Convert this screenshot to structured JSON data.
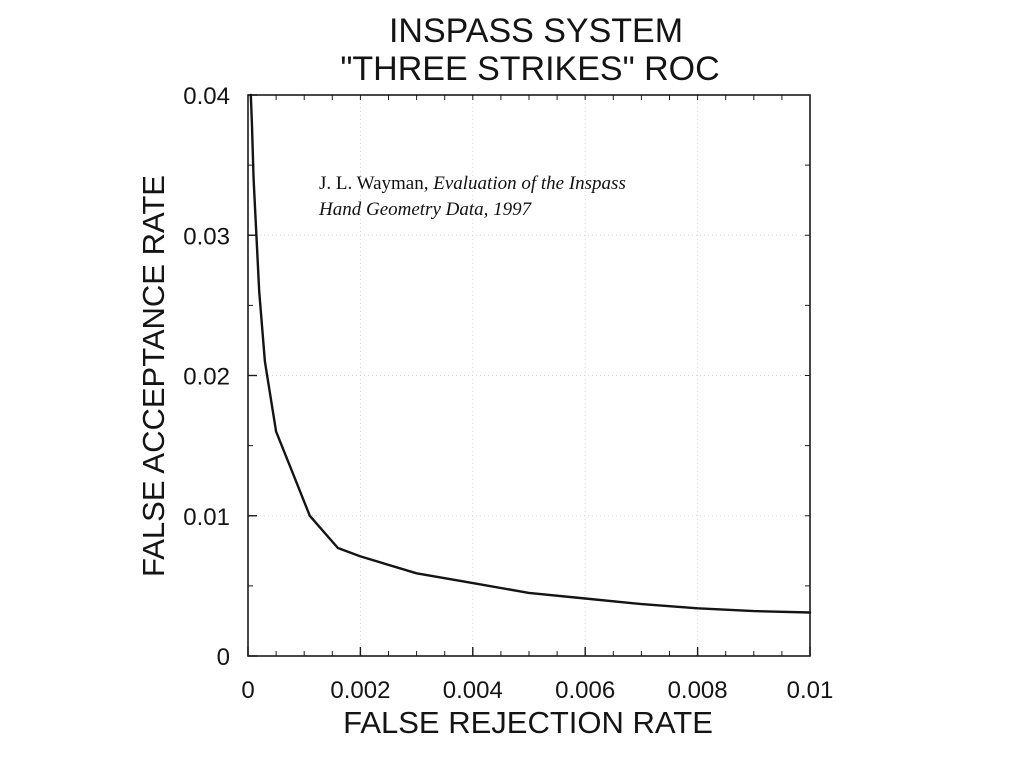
{
  "chart_data": {
    "type": "line",
    "title_lines": [
      "INSPASS SYSTEM",
      "\"THREE STRIKES\" ROC"
    ],
    "xlabel": "FALSE REJECTION RATE",
    "ylabel": "FALSE ACCEPTANCE RATE",
    "xlim": [
      0,
      0.01
    ],
    "ylim": [
      0,
      0.04
    ],
    "x_ticks": [
      {
        "value": 0,
        "label": "0"
      },
      {
        "value": 0.002,
        "label": "0.002"
      },
      {
        "value": 0.004,
        "label": "0.004"
      },
      {
        "value": 0.006,
        "label": "0.006"
      },
      {
        "value": 0.008,
        "label": "0.008"
      },
      {
        "value": 0.01,
        "label": "0.01"
      }
    ],
    "y_ticks": [
      {
        "value": 0,
        "label": "0"
      },
      {
        "value": 0.01,
        "label": "0.01"
      },
      {
        "value": 0.02,
        "label": "0.02"
      },
      {
        "value": 0.03,
        "label": "0.03"
      },
      {
        "value": 0.04,
        "label": "0.04"
      }
    ],
    "grid": true,
    "series": [
      {
        "x": [
          5e-05,
          7e-05,
          0.0001,
          0.00015,
          0.0002,
          0.0003,
          0.0005,
          0.0008,
          0.0011,
          0.0016,
          0.002,
          0.003,
          0.004,
          0.005,
          0.006,
          0.007,
          0.008,
          0.009,
          0.01
        ],
        "y": [
          0.04,
          0.038,
          0.034,
          0.03,
          0.026,
          0.021,
          0.016,
          0.013,
          0.01,
          0.0077,
          0.0071,
          0.0059,
          0.0052,
          0.0045,
          0.0041,
          0.0037,
          0.0034,
          0.0032,
          0.0031
        ]
      }
    ],
    "color": "#141414",
    "annotation": {
      "author": "J. L. Wayman, ",
      "title_line1": "Evaluation of the Inspass",
      "title_line2": "Hand Geometry Data, 1997"
    }
  }
}
